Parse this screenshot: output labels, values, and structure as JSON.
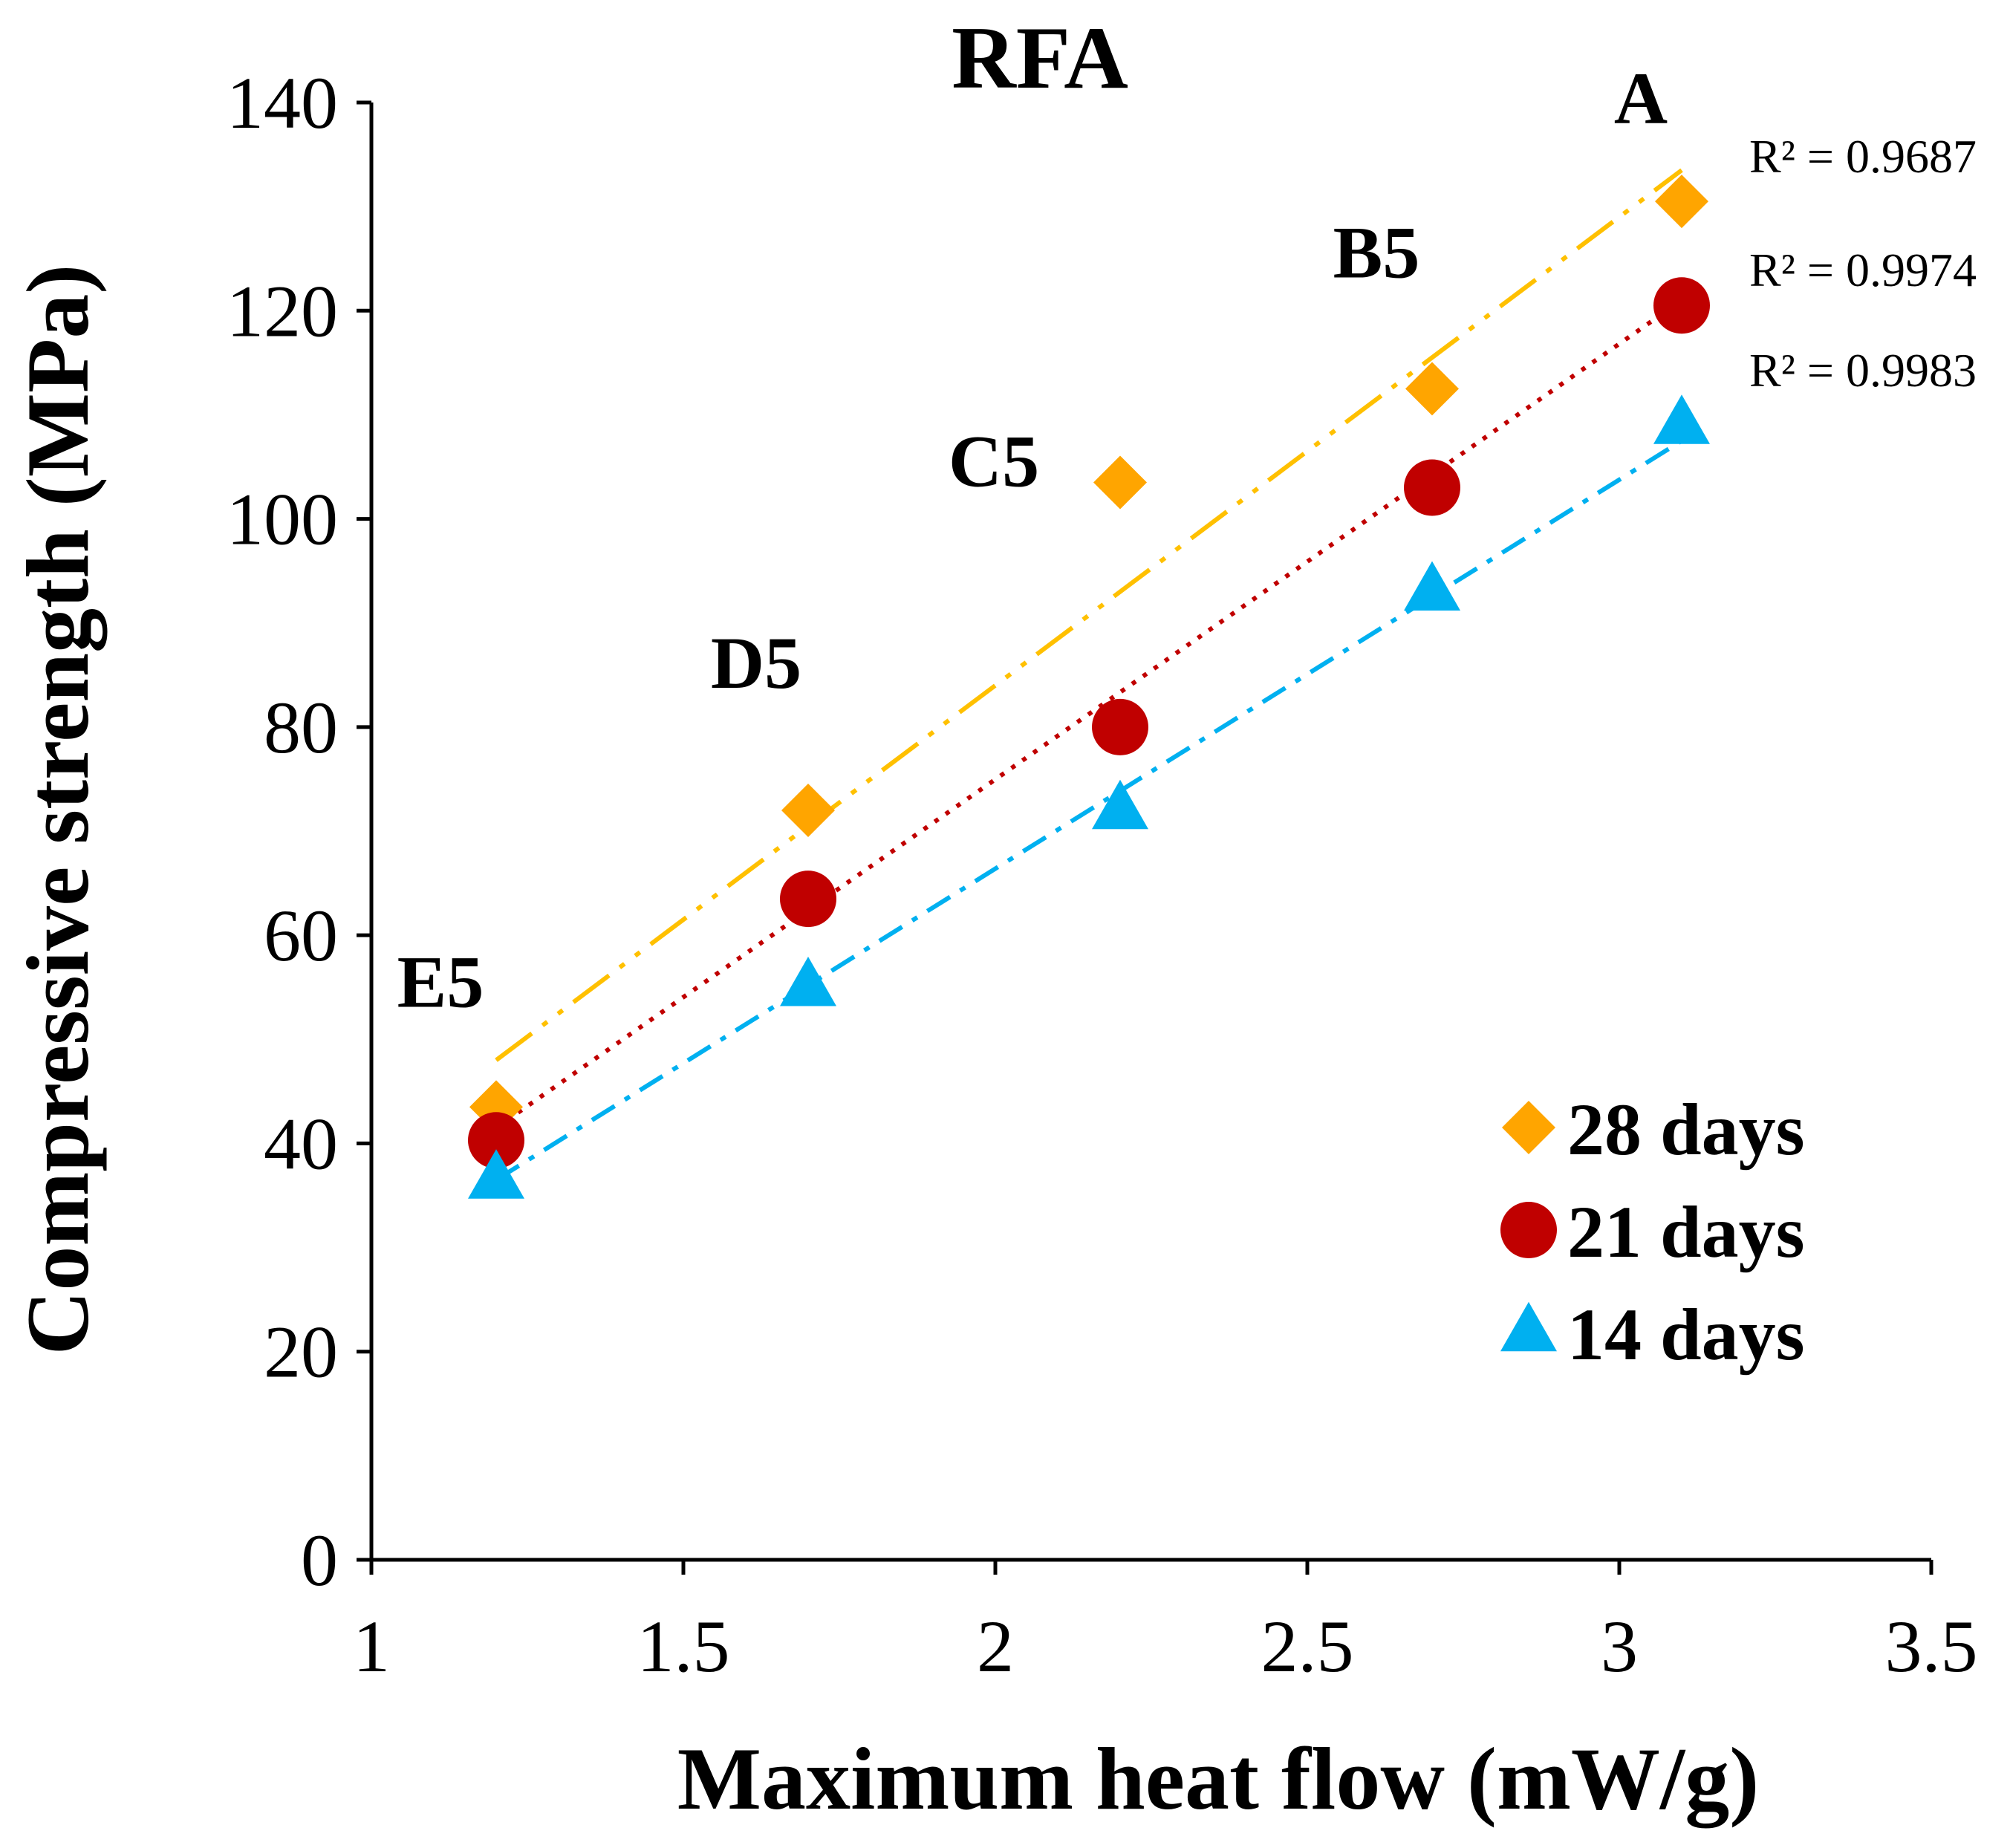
{
  "chart_data": {
    "type": "scatter",
    "title": "RFA",
    "xlabel": "Maximum heat flow (mW/g)",
    "ylabel": "Compressive strength (MPa)",
    "xlim": [
      1,
      3.5
    ],
    "ylim": [
      0,
      140
    ],
    "xticks": [
      "1",
      "1.5",
      "2",
      "2.5",
      "3",
      "3.5"
    ],
    "yticks": [
      "0",
      "20",
      "40",
      "60",
      "80",
      "100",
      "120",
      "140"
    ],
    "x": [
      1.2,
      1.7,
      2.2,
      2.7,
      3.1
    ],
    "point_labels": [
      "E5",
      "D5",
      "C5",
      "B5",
      "A"
    ],
    "series": [
      {
        "name": "28 days",
        "marker": "diamond",
        "color": "#ffa500",
        "trend_color": "#ffc000",
        "trend_style": "long-dash-dot-dot",
        "values": [
          43.5,
          72,
          103.5,
          112.5,
          130.5
        ],
        "trend": [
          48,
          133.5
        ],
        "r2": "R² = 0.9687"
      },
      {
        "name": "21 days",
        "marker": "circle",
        "color": "#c00000",
        "trend_color": "#c00000",
        "trend_style": "dotted",
        "values": [
          40.3,
          63.5,
          80,
          103,
          120.5
        ],
        "trend": [
          41.5,
          121
        ],
        "r2": "R² = 0.9974"
      },
      {
        "name": "14 days",
        "marker": "triangle",
        "color": "#00b0f0",
        "trend_color": "#00b0f0",
        "trend_style": "dash-dot",
        "values": [
          36.5,
          55,
          72,
          93,
          109
        ],
        "trend": [
          36.5,
          107.5
        ],
        "r2": "R² = 0.9983"
      }
    ],
    "legend_position": "bottom-right",
    "grid": false
  }
}
